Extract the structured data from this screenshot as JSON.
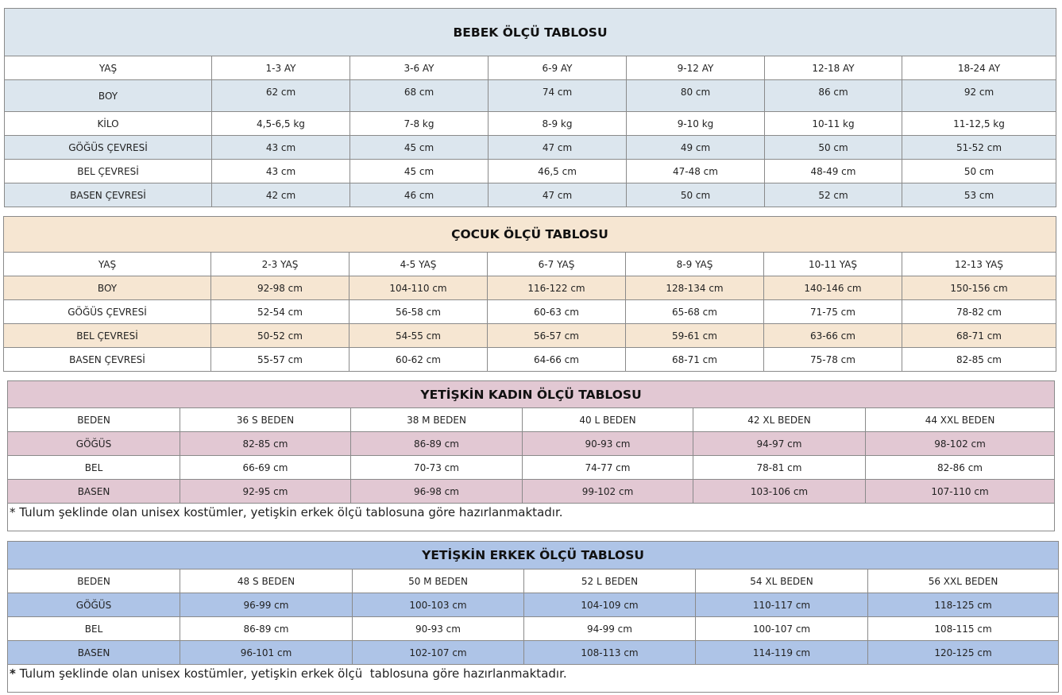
{
  "tables": [
    {
      "id": "bebek",
      "title": "BEBEK ÖLÇÜ TABLOSU",
      "color": "#dce6ee",
      "rows": [
        [
          "YAŞ",
          "1-3 AY",
          "3-6 AY",
          "6-9 AY",
          "9-12 AY",
          "12-18 AY",
          "18-24 AY"
        ],
        [
          "BOY",
          "62 cm",
          "68 cm",
          "74 cm",
          "80 cm",
          "86 cm",
          "92 cm"
        ],
        [
          "KİLO",
          "4,5-6,5 kg",
          "7-8 kg",
          "8-9 kg",
          "9-10 kg",
          "10-11 kg",
          "11-12,5 kg"
        ],
        [
          "GÖĞÜS ÇEVRESİ",
          "43 cm",
          "45 cm",
          "47 cm",
          "49 cm",
          "50 cm",
          "51-52 cm"
        ],
        [
          "BEL ÇEVRESİ",
          "43 cm",
          "45 cm",
          "46,5 cm",
          "47-48 cm",
          "48-49 cm",
          "50 cm"
        ],
        [
          "BASEN ÇEVRESİ",
          "42 cm",
          "46 cm",
          "47 cm",
          "50 cm",
          "52 cm",
          "53 cm"
        ]
      ]
    },
    {
      "id": "cocuk",
      "title": "ÇOCUK ÖLÇÜ TABLOSU",
      "color": "#f6e6d2",
      "rows": [
        [
          "YAŞ",
          "2-3 YAŞ",
          "4-5 YAŞ",
          "6-7 YAŞ",
          "8-9 YAŞ",
          "10-11 YAŞ",
          "12-13 YAŞ"
        ],
        [
          "BOY",
          "92-98 cm",
          "104-110 cm",
          "116-122 cm",
          "128-134 cm",
          "140-146 cm",
          "150-156 cm"
        ],
        [
          "GÖĞÜS ÇEVRESİ",
          "52-54 cm",
          "56-58 cm",
          "60-63 cm",
          "65-68 cm",
          "71-75 cm",
          "78-82 cm"
        ],
        [
          "BEL ÇEVRESİ",
          "50-52 cm",
          "54-55 cm",
          "56-57 cm",
          "59-61 cm",
          "63-66 cm",
          "68-71 cm"
        ],
        [
          "BASEN ÇEVRESİ",
          "55-57 cm",
          "60-62 cm",
          "64-66 cm",
          "68-71 cm",
          "75-78 cm",
          "82-85 cm"
        ]
      ]
    },
    {
      "id": "kadin",
      "title": "YETİŞKİN KADIN ÖLÇÜ TABLOSU",
      "color": "#e2c8d3",
      "rows": [
        [
          "BEDEN",
          "36 S BEDEN",
          "38 M BEDEN",
          "40 L BEDEN",
          "42 XL BEDEN",
          "44 XXL BEDEN"
        ],
        [
          "GÖĞÜS",
          "82-85 cm",
          "86-89 cm",
          "90-93 cm",
          "94-97 cm",
          "98-102 cm"
        ],
        [
          "BEL",
          "66-69 cm",
          "70-73 cm",
          "74-77 cm",
          "78-81 cm",
          "82-86 cm"
        ],
        [
          "BASEN",
          "92-95 cm",
          "96-98 cm",
          "99-102 cm",
          "103-106 cm",
          "107-110 cm"
        ]
      ],
      "note_mark": "*",
      "note": " Tulum şeklinde olan unisex kostümler, yetişkin erkek ölçü tablosuna göre hazırlanmaktadır."
    },
    {
      "id": "erkek",
      "title": "YETİŞKİN ERKEK ÖLÇÜ TABLOSU",
      "color": "#aec4e7",
      "rows": [
        [
          "BEDEN",
          "48 S BEDEN",
          "50 M BEDEN",
          "52 L BEDEN",
          "54 XL BEDEN",
          "56 XXL BEDEN"
        ],
        [
          "GÖĞÜS",
          "96-99 cm",
          "100-103 cm",
          "104-109 cm",
          "110-117 cm",
          "118-125 cm"
        ],
        [
          "BEL",
          "86-89 cm",
          "90-93 cm",
          "94-99 cm",
          "100-107 cm",
          "108-115 cm"
        ],
        [
          "BASEN",
          "96-101 cm",
          "102-107 cm",
          "108-113 cm",
          "114-119 cm",
          "120-125 cm"
        ]
      ],
      "note_mark": "*",
      "note": " Tulum şeklinde olan unisex kostümler, yetişkin erkek ölçü  tablosuna göre hazırlanmaktadır."
    }
  ]
}
